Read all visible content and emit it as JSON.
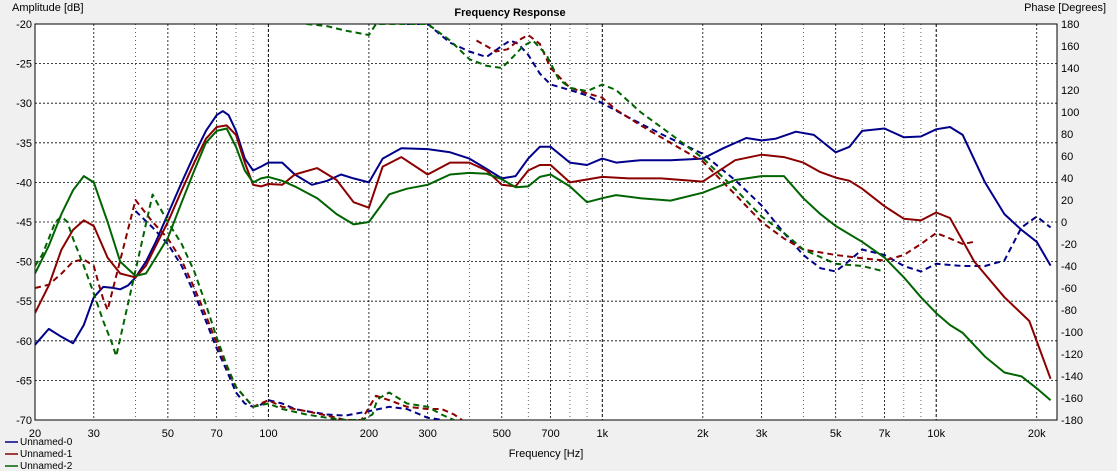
{
  "chart_data": {
    "type": "line",
    "title": "Frequency Response",
    "xlabel": "Frequency [Hz]",
    "ylabel": "Amplitude [dB]",
    "y2label": "Phase [Degrees]",
    "x_scale": "log",
    "xlim": [
      20,
      23000
    ],
    "ylim": [
      -70,
      -20
    ],
    "y2lim": [
      -180,
      180
    ],
    "grid": true,
    "legend_position": "bottom-left",
    "x_ticks": [
      20,
      30,
      50,
      70,
      100,
      200,
      300,
      500,
      700,
      1000,
      2000,
      3000,
      5000,
      7000,
      10000,
      20000
    ],
    "x_tick_labels": [
      "20",
      "30",
      "50",
      "70",
      "100",
      "200",
      "300",
      "500",
      "700",
      "1k",
      "2k",
      "3k",
      "5k",
      "7k",
      "10k",
      "20k"
    ],
    "y_ticks": [
      -20,
      -25,
      -30,
      -35,
      -40,
      -45,
      -50,
      -55,
      -60,
      -65,
      -70
    ],
    "y2_ticks": [
      180,
      160,
      140,
      120,
      100,
      80,
      60,
      40,
      20,
      0,
      -20,
      -40,
      -60,
      -80,
      -100,
      -120,
      -140,
      -160,
      -180
    ],
    "series": [
      {
        "name": "Unnamed-0",
        "color": "#00008b",
        "amplitude": {
          "x": [
            20,
            22,
            24,
            26,
            28,
            30,
            32,
            34,
            36,
            38,
            40,
            43,
            46,
            50,
            55,
            60,
            65,
            70,
            73,
            76,
            80,
            85,
            90,
            95,
            100,
            110,
            120,
            135,
            150,
            165,
            180,
            200,
            220,
            250,
            300,
            350,
            400,
            450,
            500,
            550,
            600,
            650,
            700,
            800,
            900,
            1000,
            1100,
            1300,
            1600,
            2000,
            2300,
            2700,
            3000,
            3300,
            3800,
            4300,
            5000,
            5500,
            6000,
            7000,
            8000,
            9000,
            10000,
            11000,
            12000,
            14000,
            16000,
            18000,
            20000,
            22000
          ],
          "y": [
            -60.5,
            -58.5,
            -59.5,
            -60.3,
            -58,
            -54.5,
            -53.2,
            -53.3,
            -53.5,
            -53,
            -52,
            -50,
            -47.5,
            -44,
            -40,
            -36.5,
            -33.5,
            -31.5,
            -31,
            -31.5,
            -33.5,
            -37,
            -38.5,
            -38,
            -37.5,
            -37.5,
            -39,
            -40.3,
            -39.8,
            -39,
            -39.5,
            -40,
            -37,
            -35.7,
            -35.8,
            -36.2,
            -37,
            -38.3,
            -39.5,
            -39.2,
            -37,
            -35.5,
            -35.5,
            -37.5,
            -37.8,
            -37,
            -37.5,
            -37.2,
            -37.2,
            -37,
            -35.7,
            -34.4,
            -34.7,
            -34.5,
            -33.6,
            -34,
            -36.2,
            -35.5,
            -33.5,
            -33.2,
            -34.3,
            -34.2,
            -33.3,
            -33,
            -34,
            -40,
            -44,
            -46,
            -47.5,
            -50.5
          ]
        },
        "phase": {
          "x": [
            40,
            45,
            50,
            55,
            60,
            65,
            70,
            75,
            80,
            85,
            90,
            95,
            100,
            110,
            120,
            130,
            150,
            170,
            200,
            230,
            260,
            300,
            335,
            260,
            300,
            350,
            400,
            450,
            500,
            530,
            560,
            600,
            650,
            700,
            800,
            900,
            1000,
            1200,
            1500,
            2000,
            2500,
            3000,
            3500,
            4000,
            4500,
            5000,
            5500,
            6000,
            7000,
            8000,
            9000,
            10000,
            12000,
            14000,
            16000,
            18000,
            20000,
            22000
          ],
          "y": [
            10,
            -5,
            -20,
            -40,
            -65,
            -90,
            -115,
            -135,
            -155,
            -165,
            -168,
            -166,
            -162,
            -165,
            -170,
            -172,
            -175,
            -176,
            -172,
            -168,
            -170,
            -178,
            -180,
            180,
            180,
            163,
            155,
            150,
            160,
            165,
            162,
            152,
            135,
            125,
            120,
            115,
            108,
            95,
            80,
            62,
            38,
            15,
            -10,
            -30,
            -42,
            -45,
            -35,
            -25,
            -30,
            -40,
            -45,
            -38,
            -40,
            -40,
            -35,
            -5,
            5,
            -5
          ]
        }
      },
      {
        "name": "Unnamed-1",
        "color": "#8b0000",
        "amplitude": {
          "x": [
            20,
            22,
            24,
            26,
            28,
            30,
            33,
            36,
            40,
            43,
            46,
            50,
            55,
            60,
            65,
            70,
            75,
            80,
            85,
            90,
            95,
            100,
            110,
            120,
            140,
            160,
            180,
            200,
            220,
            250,
            300,
            350,
            400,
            450,
            500,
            550,
            600,
            650,
            700,
            800,
            1000,
            1200,
            1500,
            2000,
            2500,
            3000,
            3500,
            4000,
            4500,
            5000,
            5500,
            6000,
            7000,
            8000,
            9000,
            10000,
            11000,
            13000,
            16000,
            19000,
            22000
          ],
          "y": [
            -56.5,
            -53,
            -48.5,
            -46,
            -44.8,
            -45.5,
            -49.5,
            -51.5,
            -52,
            -50.5,
            -48,
            -45,
            -41,
            -37.5,
            -34.5,
            -33,
            -32.8,
            -34,
            -37.5,
            -40.3,
            -40.5,
            -40.2,
            -40.3,
            -39,
            -38.2,
            -39.7,
            -42.5,
            -43.2,
            -38,
            -36.8,
            -39,
            -37.5,
            -37.5,
            -38.5,
            -40.3,
            -40.5,
            -38.5,
            -37.8,
            -37.8,
            -40,
            -39.3,
            -39.5,
            -39.5,
            -39.9,
            -37.2,
            -36.5,
            -36.8,
            -37.5,
            -38.7,
            -39.4,
            -39.8,
            -40.8,
            -43,
            -44.6,
            -44.8,
            -43.8,
            -44.5,
            -50,
            -54.5,
            -57.5,
            -64.8
          ]
        },
        "phase": {
          "x": [
            20,
            22,
            24,
            26,
            28,
            30,
            31,
            32,
            33,
            40,
            45,
            50,
            55,
            60,
            65,
            70,
            75,
            80,
            90,
            100,
            110,
            130,
            150,
            170,
            190,
            210,
            230,
            260,
            300,
            330,
            360,
            380,
            420,
            480,
            520,
            560,
            600,
            650,
            700,
            800,
            900,
            1000,
            1100,
            1300,
            1600,
            2000,
            2500,
            3000,
            3500,
            4000,
            5000,
            6000,
            7000,
            8000,
            9000,
            10000,
            11000,
            12000,
            13000
          ],
          "y": [
            -60,
            -57,
            -47,
            -36,
            -34,
            -40,
            -56,
            -70,
            -80,
            20,
            0,
            -15,
            -35,
            -60,
            -85,
            -110,
            -132,
            -150,
            -168,
            -162,
            -168,
            -172,
            -176,
            -180,
            -180,
            -158,
            -162,
            -168,
            -170,
            -170,
            -175,
            -180,
            165,
            155,
            157,
            165,
            170,
            162,
            140,
            122,
            117,
            113,
            102,
            88,
            72,
            55,
            25,
            0,
            -15,
            -25,
            -30,
            -33,
            -35,
            -30,
            -20,
            -10,
            -15,
            -20,
            -18
          ]
        }
      },
      {
        "name": "Unnamed-2",
        "color": "#006400",
        "amplitude": {
          "x": [
            20,
            22,
            24,
            26,
            28,
            30,
            33,
            36,
            40,
            43,
            46,
            50,
            55,
            60,
            65,
            70,
            75,
            80,
            85,
            90,
            95,
            100,
            110,
            120,
            140,
            160,
            180,
            200,
            230,
            260,
            300,
            350,
            400,
            450,
            500,
            550,
            600,
            650,
            700,
            800,
            900,
            1000,
            1100,
            1300,
            1600,
            2000,
            2500,
            3000,
            3500,
            4000,
            4500,
            5000,
            6000,
            7000,
            8000,
            9000,
            10000,
            11000,
            12000,
            14000,
            16000,
            18000,
            20000,
            22000
          ],
          "y": [
            -51.5,
            -48,
            -44,
            -41,
            -39.2,
            -40,
            -45,
            -50,
            -51.8,
            -51.5,
            -49.5,
            -47,
            -42.5,
            -38.5,
            -35,
            -33.5,
            -33.2,
            -35.5,
            -38.5,
            -40,
            -39.5,
            -39.3,
            -39.8,
            -40.5,
            -42,
            -44,
            -45.3,
            -45,
            -41.5,
            -40.8,
            -40.3,
            -39,
            -38.8,
            -38.9,
            -39.6,
            -40.6,
            -40.5,
            -39.3,
            -39,
            -40.5,
            -42.5,
            -42,
            -41.6,
            -42,
            -42.3,
            -41.3,
            -39.7,
            -39.2,
            -39.2,
            -42,
            -44,
            -45.5,
            -47.5,
            -49.5,
            -52,
            -54.5,
            -56.5,
            -58,
            -59,
            -62,
            -64,
            -64.5,
            -66,
            -67.5
          ]
        },
        "phase": {
          "x": [
            20,
            21,
            22,
            23,
            24,
            25,
            26,
            28,
            30,
            32,
            34,
            35,
            45,
            50,
            55,
            60,
            65,
            70,
            75,
            80,
            90,
            100,
            110,
            130,
            150,
            170,
            190,
            205,
            210,
            215,
            230,
            260,
            300,
            330,
            360,
            130,
            150,
            170,
            200,
            210,
            300,
            350,
            400,
            450,
            500,
            540,
            580,
            620,
            680,
            740,
            800,
            900,
            1000,
            1100,
            1300,
            1600,
            2000,
            2500,
            3000,
            3500,
            4000,
            5000,
            6000,
            7000
          ],
          "y": [
            -40,
            -30,
            -15,
            0,
            5,
            0,
            -15,
            -40,
            -65,
            -90,
            -110,
            -122,
            25,
            0,
            -20,
            -45,
            -75,
            -105,
            -130,
            -150,
            -168,
            -165,
            -170,
            -175,
            -178,
            -180,
            -180,
            -175,
            -165,
            -160,
            -155,
            -165,
            -168,
            -175,
            -180,
            180,
            178,
            174,
            170,
            180,
            180,
            165,
            148,
            142,
            140,
            150,
            160,
            165,
            152,
            130,
            122,
            119,
            125,
            120,
            100,
            80,
            58,
            30,
            5,
            -10,
            -25,
            -38,
            -40,
            -45
          ]
        }
      }
    ]
  }
}
